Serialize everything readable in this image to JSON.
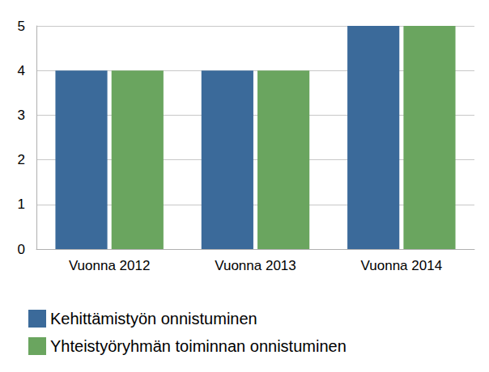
{
  "chart_data": {
    "type": "bar",
    "categories": [
      "Vuonna 2012",
      "Vuonna 2013",
      "Vuonna 2014"
    ],
    "series": [
      {
        "name": "Kehittämistyön onnistuminen",
        "color": "#3b6a9a",
        "values": [
          4,
          4,
          5
        ]
      },
      {
        "name": "Yhteistyöryhmän toiminnan onnistuminen",
        "color": "#6aa55f",
        "values": [
          4,
          4,
          5
        ]
      }
    ],
    "ylim": [
      0,
      5
    ],
    "yticks": [
      0,
      1,
      2,
      3,
      4,
      5
    ],
    "grid": true,
    "legend": "bottom"
  }
}
